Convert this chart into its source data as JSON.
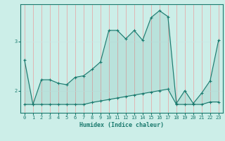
{
  "xlabel": "Humidex (Indice chaleur)",
  "bg_color": "#cceee8",
  "line_color": "#1a7a6e",
  "grid_color_v": "#e8a0a0",
  "grid_color_h": "#c8e8e4",
  "xlim": [
    -0.5,
    23.5
  ],
  "ylim": [
    1.55,
    3.75
  ],
  "yticks": [
    2,
    3
  ],
  "xticks": [
    0,
    1,
    2,
    3,
    4,
    5,
    6,
    7,
    8,
    9,
    10,
    11,
    12,
    13,
    14,
    15,
    16,
    17,
    18,
    19,
    20,
    21,
    22,
    23
  ],
  "series_bottom_x": [
    0,
    1,
    2,
    3,
    4,
    5,
    6,
    7,
    8,
    9,
    10,
    11,
    12,
    13,
    14,
    15,
    16,
    17,
    18,
    19,
    20,
    21,
    22,
    23
  ],
  "series_bottom_y": [
    1.72,
    1.72,
    1.72,
    1.72,
    1.72,
    1.72,
    1.72,
    1.72,
    1.76,
    1.79,
    1.82,
    1.85,
    1.88,
    1.91,
    1.94,
    1.97,
    2.0,
    2.03,
    1.72,
    1.72,
    1.72,
    1.72,
    1.77,
    1.77
  ],
  "series_top_x": [
    0,
    1,
    2,
    3,
    4,
    5,
    6,
    7,
    8,
    9,
    10,
    11,
    12,
    13,
    14,
    15,
    16,
    17,
    18,
    19,
    20,
    21,
    22,
    23
  ],
  "series_top_y": [
    2.62,
    1.72,
    2.22,
    2.22,
    2.15,
    2.12,
    2.27,
    2.3,
    2.43,
    2.58,
    3.22,
    3.22,
    3.05,
    3.22,
    3.02,
    3.48,
    3.62,
    3.5,
    1.74,
    2.0,
    1.74,
    1.95,
    2.2,
    3.02
  ]
}
